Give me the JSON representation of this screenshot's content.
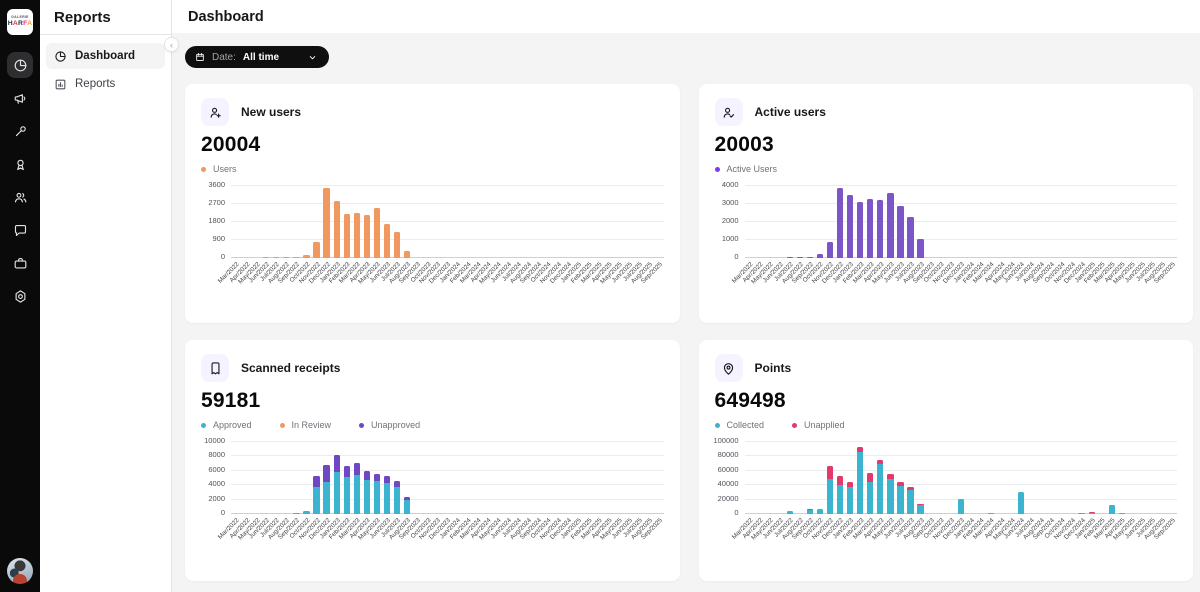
{
  "sidebar": {
    "logo": {
      "line1": "GALERIE",
      "line2": "HARFA",
      "letter_colors": [
        "#26324B",
        "#E2304C",
        "#26324B",
        "#E2308C",
        "#F59A23"
      ]
    },
    "nav": [
      {
        "icon": "pie-chart-icon",
        "active": true
      },
      {
        "icon": "megaphone-icon",
        "active": false
      },
      {
        "icon": "magic-wand-icon",
        "active": false
      },
      {
        "icon": "medal-icon",
        "active": false
      },
      {
        "icon": "users-icon",
        "active": false
      },
      {
        "icon": "chat-bubble-icon",
        "active": false
      },
      {
        "icon": "briefcase-icon",
        "active": false
      },
      {
        "icon": "settings-gear-icon",
        "active": false
      }
    ],
    "avatar": "user-avatar"
  },
  "panel": {
    "title": "Reports",
    "items": [
      {
        "label": "Dashboard",
        "icon": "pie-chart-icon",
        "active": true
      },
      {
        "label": "Reports",
        "icon": "bar-chart-icon",
        "active": false
      }
    ]
  },
  "header": {
    "title": "Dashboard"
  },
  "filters": {
    "date_label": "Date:",
    "date_value": "All time"
  },
  "cards": [
    {
      "icon": "user-plus-icon",
      "title": "New users",
      "value": "20004",
      "legend": [
        {
          "label": "Users",
          "color": "#F0985F"
        }
      ]
    },
    {
      "icon": "user-check-icon",
      "title": "Active users",
      "value": "20003",
      "legend": [
        {
          "label": "Active Users",
          "color": "#7C3AED"
        }
      ]
    },
    {
      "icon": "receipt-icon",
      "title": "Scanned receipts",
      "value": "59181",
      "legend": [
        {
          "label": "Approved",
          "color": "#3AB4CF"
        },
        {
          "label": "In Review",
          "color": "#F0985F"
        },
        {
          "label": "Unapproved",
          "color": "#6D47C4"
        }
      ]
    },
    {
      "icon": "points-pin-icon",
      "title": "Points",
      "value": "649498",
      "legend": [
        {
          "label": "Collected",
          "color": "#3AB4CF"
        },
        {
          "label": "Unapplied",
          "color": "#E23A6B"
        }
      ]
    }
  ],
  "chart_data": [
    {
      "type": "bar",
      "title": "New users",
      "ylim": [
        0,
        3600
      ],
      "yticks": [
        0,
        900,
        1800,
        2700,
        3600
      ],
      "categories": [
        "Mar/2022",
        "Apr/2022",
        "May/2022",
        "Jun/2022",
        "Jul/2022",
        "Aug/2022",
        "Sep/2022",
        "Oct/2022",
        "Nov/2022",
        "Dec/2022",
        "Jan/2023",
        "Feb/2023",
        "Mar/2023",
        "Apr/2023",
        "May/2023",
        "Jun/2023",
        "Jul/2023",
        "Aug/2023",
        "Sep/2023",
        "Oct/2023",
        "Nov/2023",
        "Dec/2023",
        "Jan/2024",
        "Feb/2024",
        "Mar/2024",
        "Apr/2024",
        "May/2024",
        "Jun/2024",
        "Jul/2024",
        "Aug/2024",
        "Sep/2024",
        "Oct/2024",
        "Nov/2024",
        "Dec/2024",
        "Jan/2025",
        "Feb/2025",
        "Mar/2025",
        "Apr/2025",
        "May/2025",
        "Jun/2025",
        "Jul/2025",
        "Aug/2025",
        "Sep/2025"
      ],
      "series": [
        {
          "name": "Users",
          "color": "#F0985F",
          "values": [
            0,
            0,
            0,
            15,
            20,
            10,
            60,
            160,
            780,
            3500,
            2850,
            2200,
            2250,
            2150,
            2480,
            1700,
            1280,
            350,
            0,
            0,
            0,
            0,
            0,
            0,
            0,
            0,
            0,
            0,
            0,
            0,
            0,
            0,
            0,
            0,
            0,
            0,
            0,
            0,
            0,
            0,
            0,
            0,
            0
          ]
        }
      ]
    },
    {
      "type": "bar",
      "title": "Active users",
      "ylim": [
        0,
        4000
      ],
      "yticks": [
        0,
        1000,
        2000,
        3000,
        4000
      ],
      "categories": [
        "Mar/2022",
        "Apr/2022",
        "May/2022",
        "Jun/2022",
        "Jul/2022",
        "Aug/2022",
        "Sep/2022",
        "Oct/2022",
        "Nov/2022",
        "Dec/2022",
        "Jan/2023",
        "Feb/2023",
        "Mar/2023",
        "Apr/2023",
        "May/2023",
        "Jun/2023",
        "Jul/2023",
        "Aug/2023",
        "Sep/2023",
        "Oct/2023",
        "Nov/2023",
        "Dec/2023",
        "Jan/2024",
        "Feb/2024",
        "Mar/2024",
        "Apr/2024",
        "May/2024",
        "Jun/2024",
        "Jul/2024",
        "Aug/2024",
        "Sep/2024",
        "Oct/2024",
        "Nov/2024",
        "Dec/2024",
        "Jan/2025",
        "Feb/2025",
        "Mar/2025",
        "Apr/2025",
        "May/2025",
        "Jun/2025",
        "Jul/2025",
        "Aug/2025",
        "Sep/2025"
      ],
      "series": [
        {
          "name": "Active Users",
          "color": "#7C55C8",
          "values": [
            0,
            0,
            0,
            0,
            10,
            15,
            80,
            200,
            880,
            3880,
            3520,
            3100,
            3300,
            3230,
            3600,
            2870,
            2280,
            1070,
            0,
            0,
            0,
            0,
            0,
            0,
            0,
            0,
            0,
            0,
            0,
            0,
            0,
            0,
            0,
            0,
            0,
            0,
            0,
            0,
            0,
            0,
            0,
            0,
            0
          ]
        }
      ]
    },
    {
      "type": "stacked-bar",
      "title": "Scanned receipts",
      "ylim": [
        0,
        10000
      ],
      "yticks": [
        0,
        2000,
        4000,
        6000,
        8000,
        10000
      ],
      "categories": [
        "Mar/2022",
        "Apr/2022",
        "May/2022",
        "Jun/2022",
        "Jul/2022",
        "Aug/2022",
        "Sep/2022",
        "Oct/2022",
        "Nov/2022",
        "Dec/2022",
        "Jan/2023",
        "Feb/2023",
        "Mar/2023",
        "Apr/2023",
        "May/2023",
        "Jun/2023",
        "Jul/2023",
        "Aug/2023",
        "Sep/2023",
        "Oct/2023",
        "Nov/2023",
        "Dec/2023",
        "Jan/2024",
        "Feb/2024",
        "Mar/2024",
        "Apr/2024",
        "May/2024",
        "Jun/2024",
        "Jul/2024",
        "Aug/2024",
        "Sep/2024",
        "Oct/2024",
        "Nov/2024",
        "Dec/2024",
        "Jan/2025",
        "Feb/2025",
        "Mar/2025",
        "Apr/2025",
        "May/2025",
        "Jun/2025",
        "Jul/2025",
        "Aug/2025",
        "Sep/2025"
      ],
      "series": [
        {
          "name": "Approved",
          "color": "#3AB4CF",
          "values": [
            0,
            0,
            0,
            0,
            0,
            0,
            150,
            400,
            3700,
            4500,
            5800,
            5100,
            5400,
            4700,
            4600,
            4300,
            3700,
            1900,
            0,
            0,
            0,
            0,
            0,
            0,
            0,
            0,
            0,
            0,
            0,
            0,
            0,
            0,
            0,
            0,
            0,
            0,
            0,
            0,
            0,
            0,
            0,
            0,
            0
          ]
        },
        {
          "name": "In Review",
          "color": "#F0985F",
          "values": [
            0,
            0,
            0,
            0,
            0,
            0,
            0,
            0,
            0,
            0,
            0,
            0,
            0,
            0,
            0,
            0,
            0,
            0,
            0,
            0,
            0,
            0,
            0,
            0,
            0,
            0,
            0,
            0,
            0,
            0,
            0,
            0,
            0,
            0,
            0,
            0,
            0,
            0,
            0,
            0,
            0,
            0,
            0
          ]
        },
        {
          "name": "Unapproved",
          "color": "#6D47C4",
          "values": [
            0,
            0,
            0,
            0,
            0,
            0,
            0,
            0,
            1600,
            2300,
            2400,
            1600,
            1700,
            1300,
            1000,
            1000,
            900,
            400,
            0,
            0,
            0,
            0,
            0,
            0,
            0,
            0,
            0,
            0,
            0,
            0,
            0,
            0,
            0,
            0,
            0,
            0,
            0,
            0,
            0,
            0,
            0,
            0,
            0
          ]
        }
      ]
    },
    {
      "type": "stacked-bar",
      "title": "Points",
      "ylim": [
        0,
        100000
      ],
      "yticks": [
        0,
        20000,
        40000,
        60000,
        80000,
        100000
      ],
      "categories": [
        "Mar/2022",
        "Apr/2022",
        "May/2022",
        "Jun/2022",
        "Jul/2022",
        "Aug/2022",
        "Sep/2022",
        "Oct/2022",
        "Nov/2022",
        "Dec/2022",
        "Jan/2023",
        "Feb/2023",
        "Mar/2023",
        "Apr/2023",
        "May/2023",
        "Jun/2023",
        "Jul/2023",
        "Aug/2023",
        "Sep/2023",
        "Oct/2023",
        "Nov/2023",
        "Dec/2023",
        "Jan/2024",
        "Feb/2024",
        "Mar/2024",
        "Apr/2024",
        "May/2024",
        "Jun/2024",
        "Jul/2024",
        "Aug/2024",
        "Sep/2024",
        "Oct/2024",
        "Nov/2024",
        "Dec/2024",
        "Jan/2025",
        "Feb/2025",
        "Mar/2025",
        "Apr/2025",
        "May/2025",
        "Jun/2025",
        "Jul/2025",
        "Aug/2025",
        "Sep/2025"
      ],
      "series": [
        {
          "name": "Collected",
          "color": "#3AB4CF",
          "values": [
            0,
            0,
            0,
            0,
            4500,
            0,
            5000,
            7000,
            49000,
            40000,
            37000,
            86000,
            44000,
            70000,
            48000,
            39000,
            33000,
            12000,
            0,
            0,
            0,
            21000,
            0,
            0,
            1000,
            0,
            0,
            30000,
            0,
            0,
            0,
            0,
            0,
            1500,
            1000,
            0,
            13000,
            1000,
            0,
            0,
            0,
            0,
            0
          ]
        },
        {
          "name": "Unapplied",
          "color": "#E23A6B",
          "values": [
            0,
            0,
            0,
            0,
            0,
            0,
            2000,
            0,
            18000,
            13000,
            7000,
            7000,
            13000,
            5000,
            7000,
            5000,
            5000,
            2500,
            0,
            0,
            0,
            0,
            0,
            0,
            0,
            0,
            0,
            0,
            0,
            0,
            0,
            0,
            0,
            0,
            2000,
            0,
            0,
            0,
            0,
            0,
            0,
            0,
            0
          ]
        }
      ]
    }
  ]
}
